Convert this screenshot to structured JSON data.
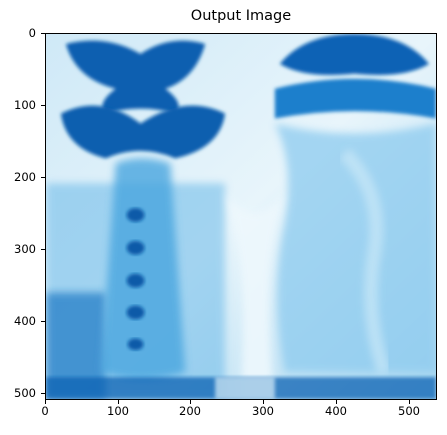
{
  "figure": {
    "title": "Output Image",
    "x_ticks": [
      "0",
      "100",
      "200",
      "300",
      "400",
      "500"
    ],
    "y_ticks": [
      "0",
      "100",
      "200",
      "300",
      "400",
      "500"
    ]
  },
  "image": {
    "description_colors": [
      "#005fb0",
      "#0a78cc",
      "#62b3e6",
      "#a9d9f2",
      "#e6f4fb"
    ]
  }
}
